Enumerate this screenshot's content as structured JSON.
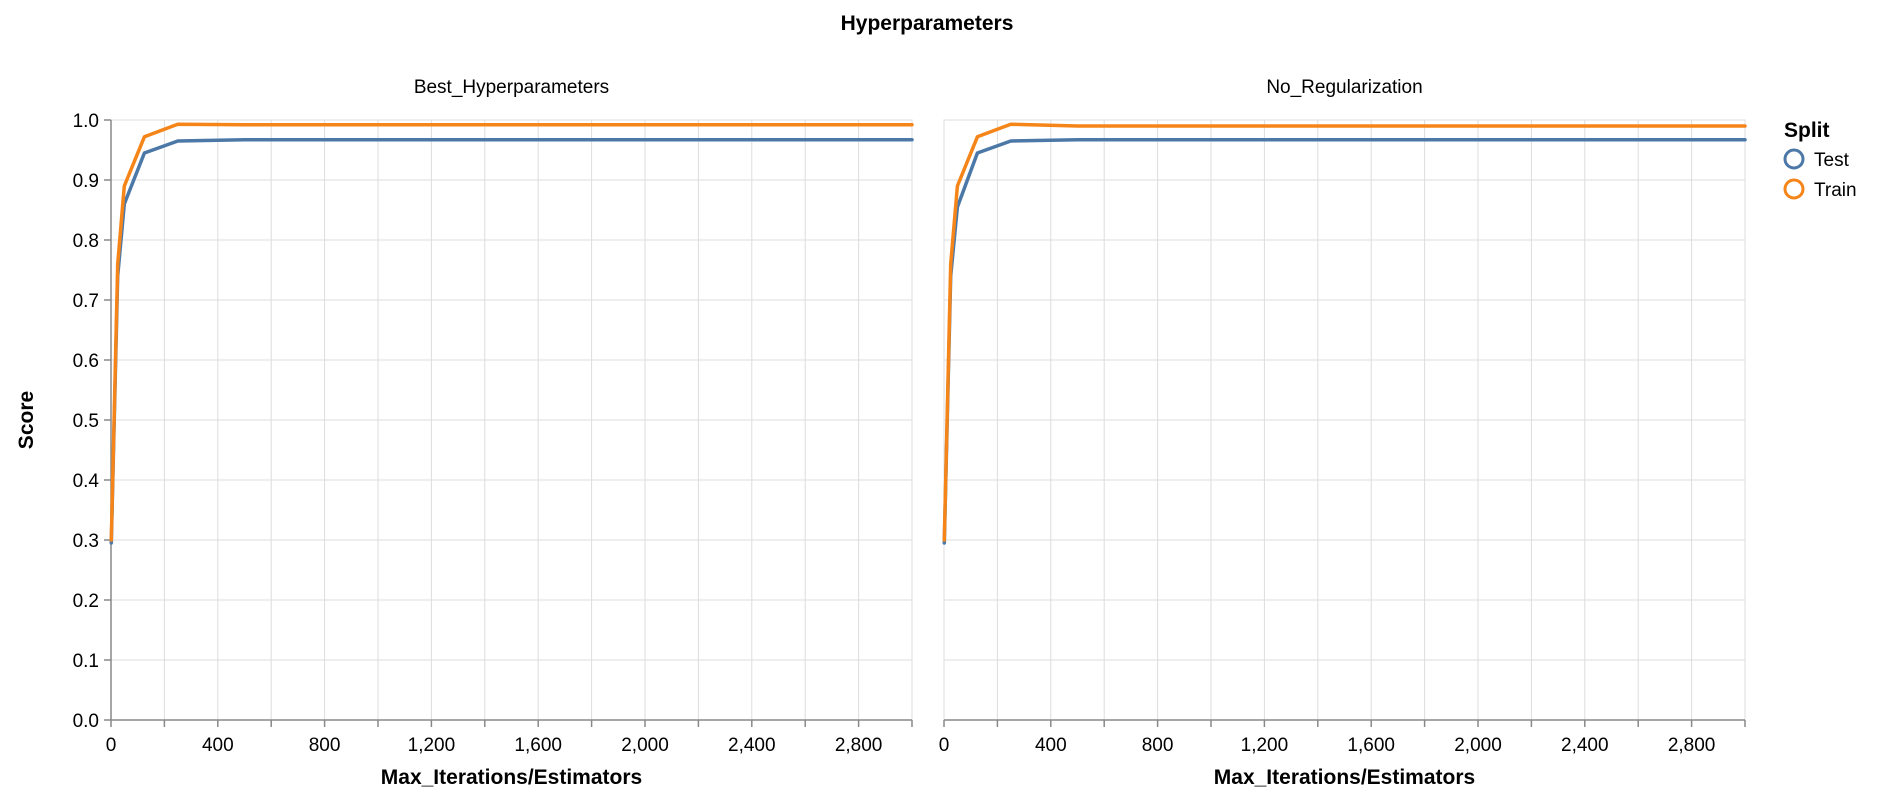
{
  "chart_data": {
    "type": "line",
    "title": "Hyperparameters",
    "xlabel": "Max_Iterations/Estimators",
    "ylabel": "Score",
    "xlim": [
      0,
      3000
    ],
    "ylim": [
      0,
      1.0
    ],
    "x_ticks": [
      0,
      400,
      800,
      1200,
      1600,
      2000,
      2400,
      2800
    ],
    "x_tick_labels": [
      "0",
      "400",
      "800",
      "1,200",
      "1,600",
      "2,000",
      "2,400",
      "2,800"
    ],
    "y_ticks": [
      0,
      0.1,
      0.2,
      0.3,
      0.4,
      0.5,
      0.6,
      0.7,
      0.8,
      0.9,
      1.0
    ],
    "y_tick_labels": [
      "0.0",
      "0.1",
      "0.2",
      "0.3",
      "0.4",
      "0.5",
      "0.6",
      "0.7",
      "0.8",
      "0.9",
      "1.0"
    ],
    "grid": true,
    "legend": {
      "title": "Split",
      "placement": "right",
      "entries": [
        {
          "label": "Test",
          "color": "#4c78a8"
        },
        {
          "label": "Train",
          "color": "#f58518"
        }
      ]
    },
    "facets": [
      {
        "title": "Best_Hyperparameters",
        "series": [
          {
            "name": "Test",
            "color": "#4c78a8",
            "x": [
              1,
              25,
              50,
              125,
              250,
              500,
              1000,
              2000,
              3000
            ],
            "y": [
              0.295,
              0.74,
              0.86,
              0.945,
              0.965,
              0.967,
              0.967,
              0.967,
              0.967
            ]
          },
          {
            "name": "Train",
            "color": "#f58518",
            "x": [
              1,
              25,
              50,
              125,
              250,
              500,
              1000,
              2000,
              3000
            ],
            "y": [
              0.3,
              0.76,
              0.89,
              0.972,
              0.993,
              0.992,
              0.992,
              0.992,
              0.992
            ]
          }
        ]
      },
      {
        "title": "No_Regularization",
        "series": [
          {
            "name": "Test",
            "color": "#4c78a8",
            "x": [
              1,
              25,
              50,
              125,
              250,
              500,
              1000,
              2000,
              3000
            ],
            "y": [
              0.295,
              0.74,
              0.855,
              0.945,
              0.965,
              0.967,
              0.967,
              0.967,
              0.967
            ]
          },
          {
            "name": "Train",
            "color": "#f58518",
            "x": [
              1,
              25,
              50,
              125,
              250,
              500,
              1000,
              2000,
              3000
            ],
            "y": [
              0.3,
              0.76,
              0.89,
              0.972,
              0.993,
              0.99,
              0.99,
              0.99,
              0.99
            ]
          }
        ]
      }
    ]
  }
}
